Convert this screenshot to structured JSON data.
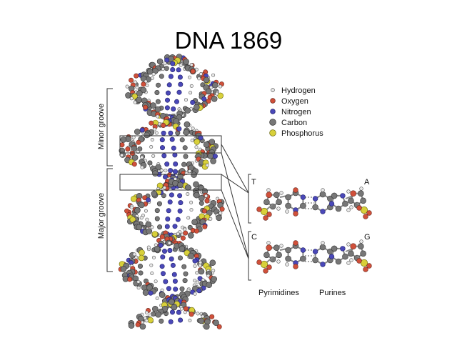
{
  "slide": {
    "title": "DNA 1869"
  },
  "legend": {
    "items": [
      {
        "label": "Hydrogen",
        "color": "#e8e8e8",
        "stroke": "#555555",
        "kind": "small"
      },
      {
        "label": "Oxygen",
        "color": "#d0503a",
        "stroke": "#6a2a20",
        "kind": "medium"
      },
      {
        "label": "Nitrogen",
        "color": "#4a48b8",
        "stroke": "#22226a",
        "kind": "medium"
      },
      {
        "label": "Carbon",
        "color": "#777777",
        "stroke": "#333333",
        "kind": "large"
      },
      {
        "label": "Phosphorus",
        "color": "#d8d03a",
        "stroke": "#6a6a10",
        "kind": "large"
      }
    ]
  },
  "grooves": {
    "minor": "Minor groove",
    "major": "Major groove"
  },
  "pairs": {
    "top_left": "T",
    "top_right": "A",
    "bottom_left": "C",
    "bottom_right": "G",
    "pyrimidines": "Pyrimidines",
    "purines": "Purines"
  },
  "colors": {
    "title": "#000000",
    "outline": "#333333"
  }
}
